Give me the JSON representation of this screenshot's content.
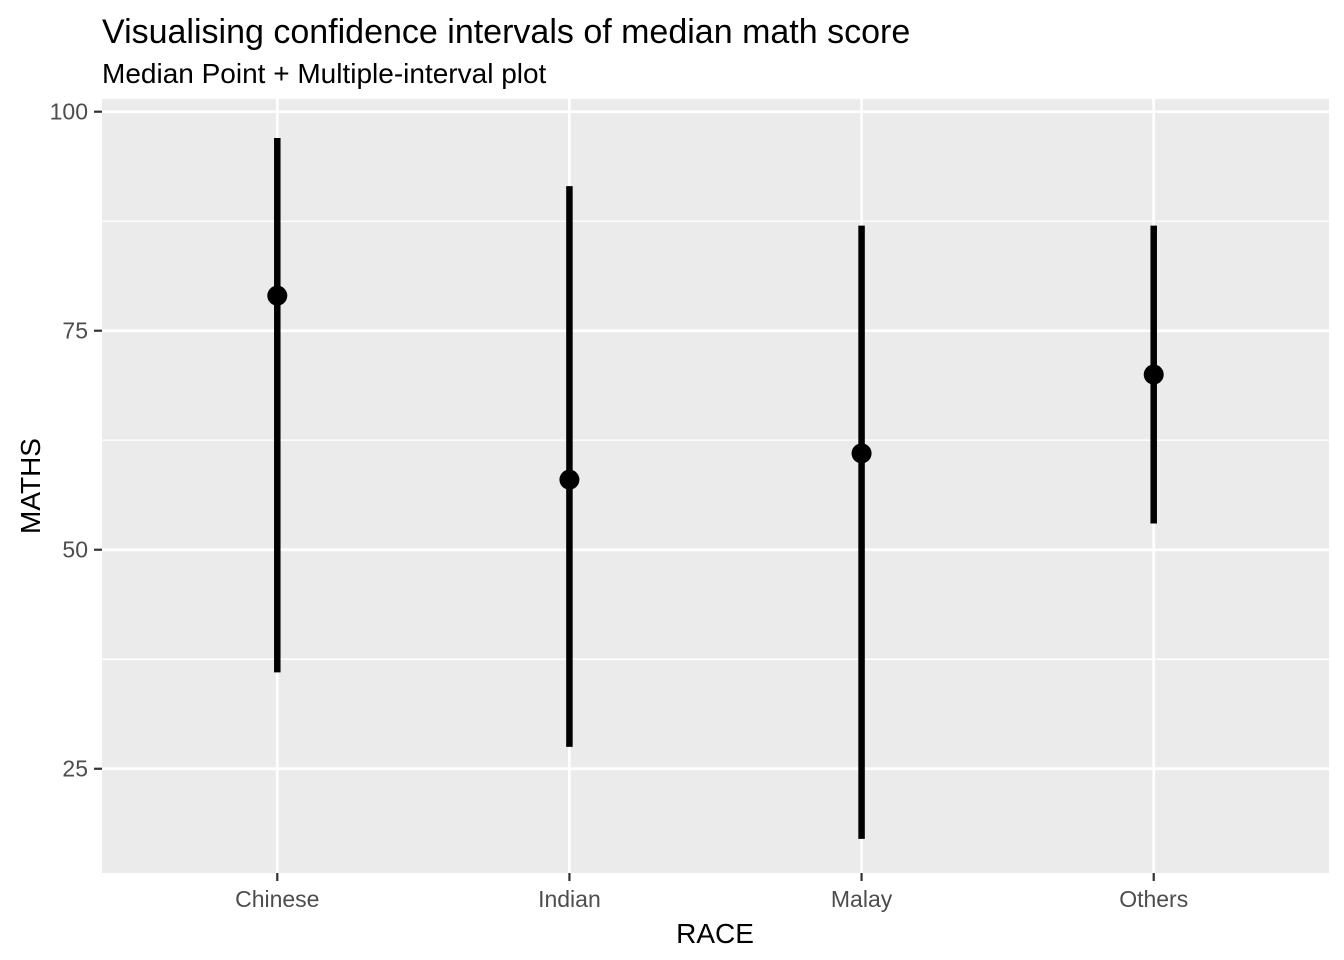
{
  "chart_data": {
    "type": "pointrange",
    "title": "Visualising confidence intervals of median math score",
    "subtitle": "Median Point + Multiple-interval plot",
    "xlabel": "RACE",
    "ylabel": "MATHS",
    "categories": [
      "Chinese",
      "Indian",
      "Malay",
      "Others"
    ],
    "series": [
      {
        "name": "median",
        "values": [
          79,
          58,
          61,
          70
        ]
      },
      {
        "name": "lower",
        "values": [
          36,
          27.5,
          17,
          53
        ]
      },
      {
        "name": "upper",
        "values": [
          97,
          91.5,
          87,
          87
        ]
      }
    ],
    "y_ticks": [
      100,
      75,
      50,
      25
    ],
    "y_minor_gridlines": [
      87.5,
      62.5,
      37.5
    ],
    "ylim": [
      13.1,
      101.45
    ],
    "grid": true,
    "legend": "none",
    "theme": "ggplot-grey"
  },
  "colors": {
    "background": "#FFFFFF",
    "panel_bg": "#EBEBEB",
    "grid": "#FFFFFF",
    "geom": "#000000",
    "tick_label": "#4D4D4D",
    "axis_title": "#000000",
    "tick_mark": "#333333"
  }
}
